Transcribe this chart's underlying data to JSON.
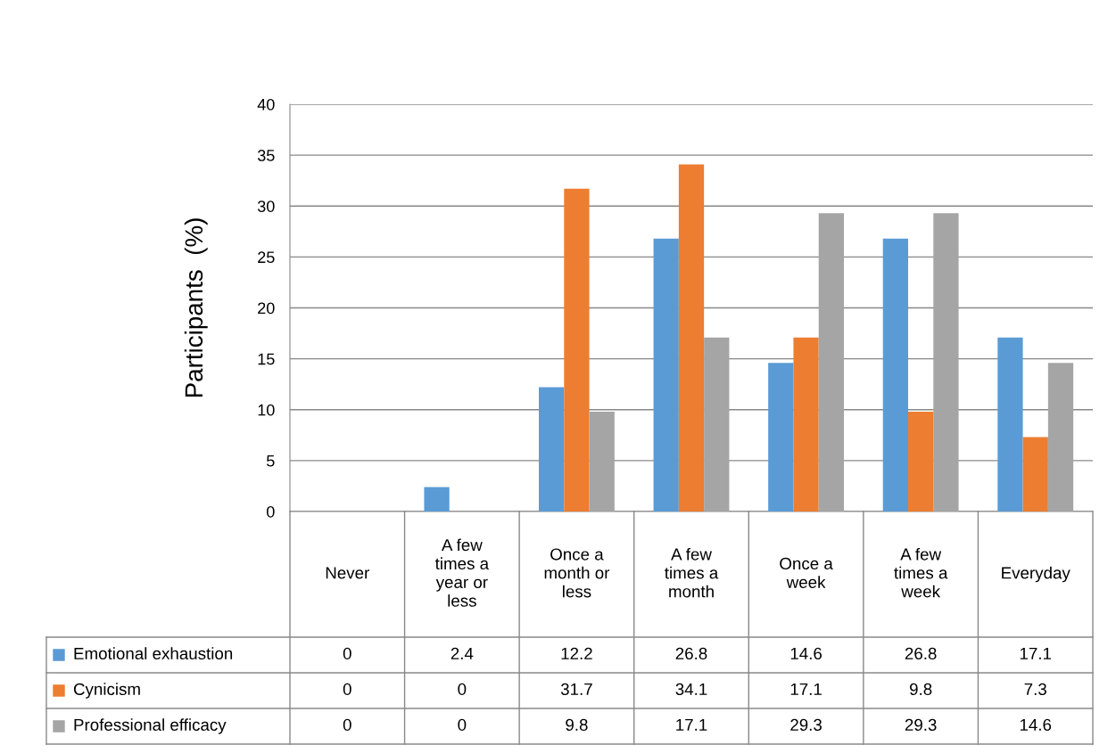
{
  "chart_data": {
    "type": "bar",
    "ylabel": "Participants  (%)",
    "categories": [
      "Never",
      "A few\ntimes a\nyear or\nless",
      "Once a\nmonth or\nless",
      "A few\ntimes a\nmonth",
      "Once a\nweek",
      "A few\ntimes a\nweek",
      "Everyday"
    ],
    "series": [
      {
        "name": "Emotional exhaustion",
        "color": "#5b9bd5",
        "values": [
          0,
          2.4,
          12.2,
          26.8,
          14.6,
          26.8,
          17.1
        ]
      },
      {
        "name": "Cynicism",
        "color": "#ed7d31",
        "values": [
          0,
          0,
          31.7,
          34.1,
          17.1,
          9.8,
          7.3
        ]
      },
      {
        "name": "Professional efficacy",
        "color": "#a5a5a5",
        "values": [
          0,
          0,
          9.8,
          17.1,
          29.3,
          29.3,
          14.6
        ]
      }
    ],
    "ylim": [
      0,
      40
    ],
    "yticks": [
      0,
      5,
      10,
      15,
      20,
      25,
      30,
      35,
      40
    ],
    "grid": "y",
    "legend": "bottom",
    "data_labels": true
  }
}
